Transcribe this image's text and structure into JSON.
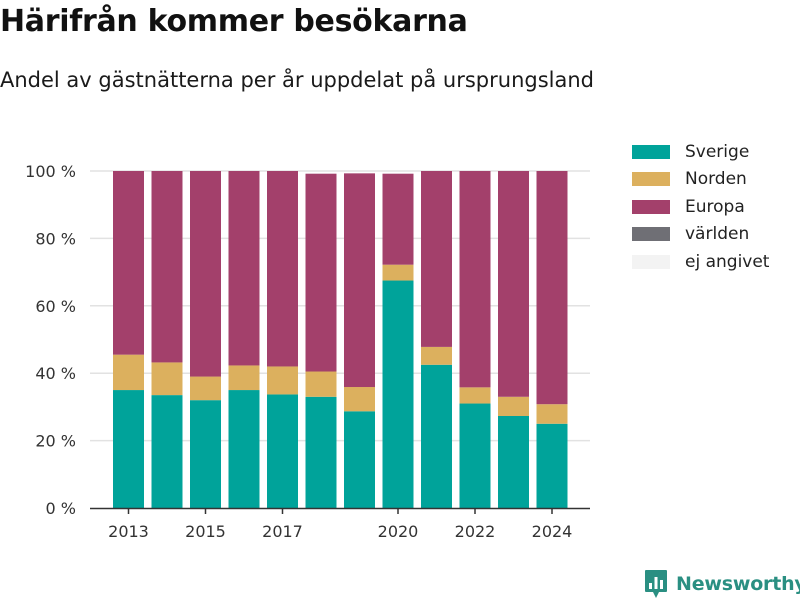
{
  "header": {
    "title": "Härifrån kommer besökarna",
    "subtitle": "Andel av gästnätterna per år uppdelat på ursprungsland"
  },
  "brand": {
    "name": "Newsworthy",
    "color": "#2a8f82"
  },
  "legend": [
    {
      "label": "Sverige",
      "color": "#00a39a"
    },
    {
      "label": "Norden",
      "color": "#dcb05e"
    },
    {
      "label": "Europa",
      "color": "#a3406b"
    },
    {
      "label": "världen",
      "color": "#6f6f75"
    },
    {
      "label": "ej angivet",
      "color": "#f3f3f3"
    }
  ],
  "chart_data": {
    "type": "bar",
    "stacked": true,
    "categories": [
      "2013",
      "2014",
      "2015",
      "2016",
      "2017",
      "2018",
      "2019",
      "2020",
      "2021",
      "2022",
      "2023",
      "2024"
    ],
    "x_tick_labels": [
      "2013",
      "",
      "2015",
      "",
      "2017",
      "",
      "",
      "2020",
      "",
      "2022",
      "",
      "2024"
    ],
    "series": [
      {
        "name": "Sverige",
        "color": "#00a39a",
        "values": [
          35,
          33.5,
          32,
          35,
          33.7,
          33,
          28.7,
          67.5,
          42.5,
          31,
          27.3,
          25
        ]
      },
      {
        "name": "Norden",
        "color": "#dcb05e",
        "values": [
          10.5,
          9.7,
          7,
          7.3,
          8.3,
          7.5,
          7.2,
          4.7,
          5.3,
          4.8,
          5.7,
          5.8
        ]
      },
      {
        "name": "Europa",
        "color": "#a3406b",
        "values": [
          54.5,
          56.8,
          61,
          57.7,
          58,
          58.7,
          63.4,
          27,
          52.2,
          64.2,
          67,
          69.2
        ]
      },
      {
        "name": "världen",
        "color": "#6f6f75",
        "values": [
          0,
          0,
          0,
          0,
          0,
          0,
          0,
          0,
          0,
          0,
          0,
          0
        ]
      },
      {
        "name": "ej angivet",
        "color": "#f3f3f3",
        "values": [
          0,
          0,
          0,
          0,
          0,
          0,
          0,
          0,
          0,
          0,
          0,
          0
        ]
      }
    ],
    "y_ticks": [
      {
        "value": 0,
        "label": "0 %"
      },
      {
        "value": 20,
        "label": "20 %"
      },
      {
        "value": 40,
        "label": "40 %"
      },
      {
        "value": 60,
        "label": "60 %"
      },
      {
        "value": 80,
        "label": "80 %"
      },
      {
        "value": 100,
        "label": "100 %"
      }
    ],
    "ylim": [
      0,
      100
    ],
    "grid": true,
    "legend_position": "right"
  }
}
